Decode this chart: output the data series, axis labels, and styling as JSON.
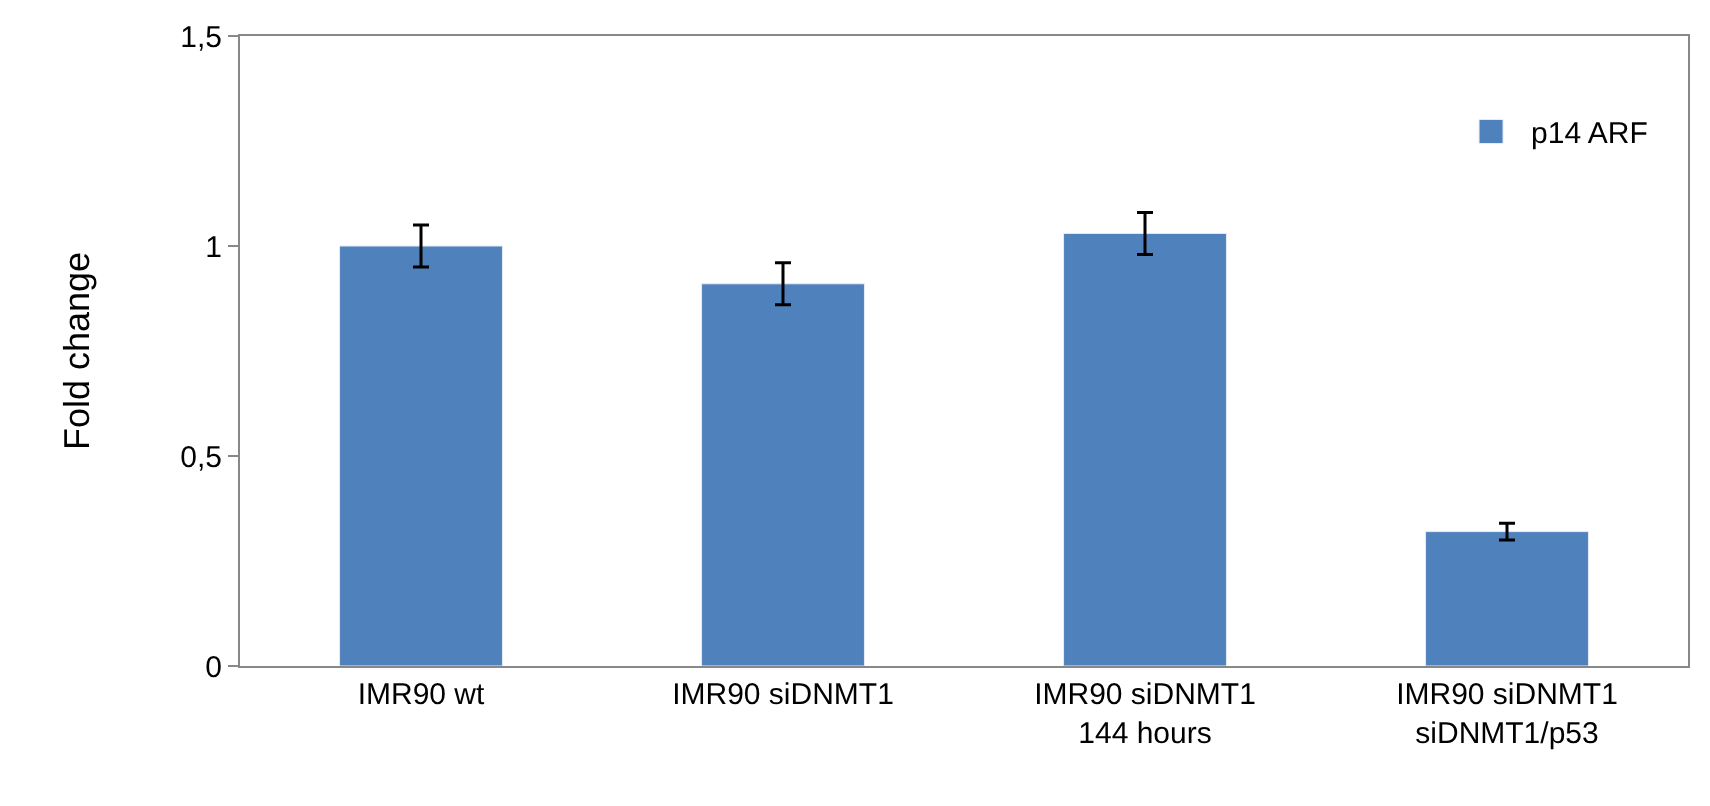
{
  "chart_data": {
    "type": "bar",
    "ylabel": "Fold change",
    "categories": [
      "IMR90 wt",
      "IMR90 siDNMT1",
      "IMR90 siDNMT1\n144 hours",
      "IMR90 siDNMT1\nsiDNMT1/p53"
    ],
    "series": [
      {
        "name": "p14 ARF",
        "color": "#4f81bd",
        "values": [
          1.0,
          0.91,
          1.03,
          0.32
        ],
        "errors": [
          0.05,
          0.05,
          0.05,
          0.02
        ]
      }
    ],
    "ylim": [
      0,
      1.5
    ],
    "yticks": [
      {
        "value": 0,
        "label": "0"
      },
      {
        "value": 0.5,
        "label": "0,5"
      },
      {
        "value": 1,
        "label": "1"
      },
      {
        "value": 1.5,
        "label": "1,5"
      }
    ],
    "legend": "top right"
  }
}
